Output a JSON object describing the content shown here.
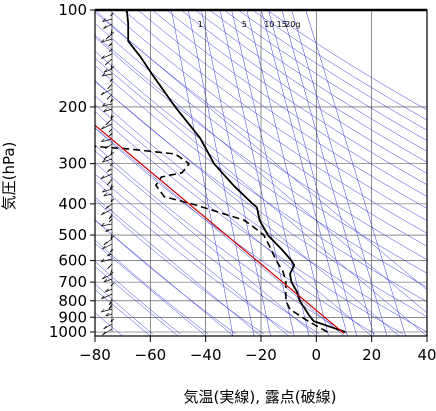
{
  "chart_data": {
    "type": "line",
    "title": "",
    "xlabel": "気温(実線), 露点(破線)",
    "ylabel": "気圧(hPa)",
    "x_unit": "°C",
    "y_unit": "hPa",
    "y_scale": "log",
    "y_inverted": true,
    "xlim": [
      -80,
      40
    ],
    "ylim": [
      1050,
      100
    ],
    "x_ticks": [
      -80,
      -60,
      -40,
      -20,
      0,
      20,
      40
    ],
    "x_tick_labels": [
      "−80",
      "−60",
      "−40",
      "−20",
      "0",
      "20",
      "40"
    ],
    "y_ticks": [
      100,
      200,
      300,
      400,
      500,
      600,
      700,
      800,
      900,
      1000
    ],
    "y_tick_labels": [
      "100",
      "200",
      "300",
      "400",
      "500",
      "600",
      "700",
      "800",
      "900",
      "1000"
    ],
    "grid": true,
    "background_lines": {
      "isotherms_skew": true,
      "dry_adiabats": true,
      "mixing_ratio_lines": true,
      "color": "#3838e0"
    },
    "mixing_ratio_labels": [
      {
        "value": 1,
        "label": "1",
        "temp_at_top": -42.0
      },
      {
        "value": 5,
        "label": "5",
        "temp_at_top": -26.0
      },
      {
        "value": 10,
        "label": "10",
        "temp_at_top": -17.0
      },
      {
        "value": 15,
        "label": "15",
        "temp_at_top": -12.5
      },
      {
        "value": 20,
        "label": "20g",
        "temp_at_top": -8.5
      }
    ],
    "series": [
      {
        "style": "solid",
        "color": "#000000",
        "points": [
          {
            "p": 1000,
            "t": 10.5
          },
          {
            "p": 960,
            "t": 4.5
          },
          {
            "p": 925,
            "t": -1.0
          },
          {
            "p": 890,
            "t": -2.5
          },
          {
            "p": 850,
            "t": -4.0
          },
          {
            "p": 800,
            "t": -6.0
          },
          {
            "p": 750,
            "t": -7.0
          },
          {
            "p": 700,
            "t": -9.0
          },
          {
            "p": 660,
            "t": -9.5
          },
          {
            "p": 620,
            "t": -8.0
          },
          {
            "p": 600,
            "t": -9.0
          },
          {
            "p": 560,
            "t": -12.0
          },
          {
            "p": 500,
            "t": -17.5
          },
          {
            "p": 450,
            "t": -20.5
          },
          {
            "p": 410,
            "t": -21.5
          },
          {
            "p": 400,
            "t": -23.0
          },
          {
            "p": 350,
            "t": -30.0
          },
          {
            "p": 300,
            "t": -37.0
          },
          {
            "p": 250,
            "t": -42.0
          },
          {
            "p": 200,
            "t": -51.0
          },
          {
            "p": 160,
            "t": -59.0
          },
          {
            "p": 140,
            "t": -63.5
          },
          {
            "p": 125,
            "t": -68.0
          },
          {
            "p": 110,
            "t": -68.0
          },
          {
            "p": 100,
            "t": -68.5
          }
        ]
      },
      {
        "style": "dashed",
        "color": "#000000",
        "points": [
          {
            "p": 1000,
            "t": 4.0
          },
          {
            "p": 925,
            "t": -3.0
          },
          {
            "p": 850,
            "t": -9.5
          },
          {
            "p": 800,
            "t": -11.0
          },
          {
            "p": 750,
            "t": -11.0
          },
          {
            "p": 700,
            "t": -11.0
          },
          {
            "p": 650,
            "t": -12.0
          },
          {
            "p": 600,
            "t": -14.5
          },
          {
            "p": 550,
            "t": -16.5
          },
          {
            "p": 500,
            "t": -19.0
          },
          {
            "p": 470,
            "t": -23.0
          },
          {
            "p": 450,
            "t": -26.0
          },
          {
            "p": 420,
            "t": -37.0
          },
          {
            "p": 400,
            "t": -45.0
          },
          {
            "p": 380,
            "t": -55.0
          },
          {
            "p": 350,
            "t": -58.0
          },
          {
            "p": 330,
            "t": -56.0
          },
          {
            "p": 320,
            "t": -48.5
          },
          {
            "p": 300,
            "t": -46.0
          },
          {
            "p": 280,
            "t": -51.0
          },
          {
            "p": 270,
            "t": -68.0
          },
          {
            "p": 265,
            "t": -81.0
          }
        ]
      },
      {
        "style": "solid",
        "color": "#cc0000",
        "points": [
          {
            "p": 1010,
            "t": 10.0
          },
          {
            "p": 228,
            "t": -80.0
          }
        ]
      }
    ]
  }
}
